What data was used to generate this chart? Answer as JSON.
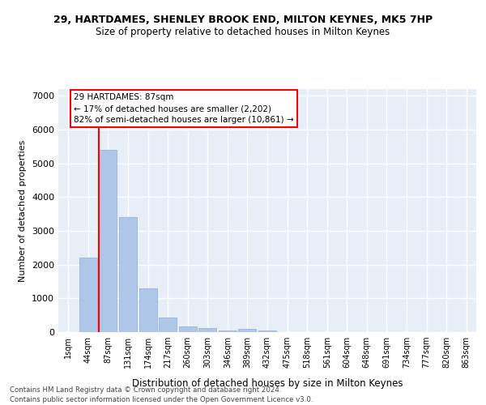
{
  "title1": "29, HARTDAMES, SHENLEY BROOK END, MILTON KEYNES, MK5 7HP",
  "title2": "Size of property relative to detached houses in Milton Keynes",
  "xlabel": "Distribution of detached houses by size in Milton Keynes",
  "ylabel": "Number of detached properties",
  "footer": "Contains HM Land Registry data © Crown copyright and database right 2024.\nContains public sector information licensed under the Open Government Licence v3.0.",
  "annotation_title": "29 HARTDAMES: 87sqm",
  "annotation_line1": "← 17% of detached houses are smaller (2,202)",
  "annotation_line2": "82% of semi-detached houses are larger (10,861) →",
  "bar_color": "#aec6e8",
  "bar_edge_color": "#8ab0d8",
  "categories": [
    "1sqm",
    "44sqm",
    "87sqm",
    "131sqm",
    "174sqm",
    "217sqm",
    "260sqm",
    "303sqm",
    "346sqm",
    "389sqm",
    "432sqm",
    "475sqm",
    "518sqm",
    "561sqm",
    "604sqm",
    "648sqm",
    "691sqm",
    "734sqm",
    "777sqm",
    "820sqm",
    "863sqm"
  ],
  "values": [
    10,
    2200,
    5400,
    3400,
    1300,
    430,
    175,
    130,
    50,
    100,
    50,
    0,
    0,
    0,
    0,
    0,
    0,
    0,
    0,
    0,
    0
  ],
  "ylim": [
    0,
    7200
  ],
  "yticks": [
    0,
    1000,
    2000,
    3000,
    4000,
    5000,
    6000,
    7000
  ],
  "bg_color": "#e8eef8",
  "grid_color": "white",
  "property_bar_index": 2,
  "red_line_color": "red"
}
